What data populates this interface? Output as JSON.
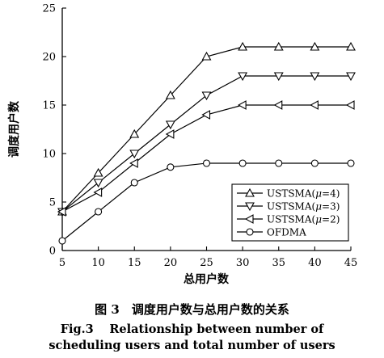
{
  "chart_data": {
    "type": "line",
    "xlabel": "总用户数",
    "ylabel": "调度用户数",
    "x": [
      5,
      10,
      15,
      20,
      25,
      30,
      35,
      40,
      45
    ],
    "xlim": [
      5,
      45
    ],
    "ylim": [
      0,
      25
    ],
    "xticks": [
      5,
      10,
      15,
      20,
      25,
      30,
      35,
      40,
      45
    ],
    "yticks": [
      0,
      5,
      10,
      15,
      20,
      25
    ],
    "grid": false,
    "legend_position": "bottom-right",
    "series": [
      {
        "name": "USTSMA(μ=4)",
        "name_prefix": "USTSMA(",
        "name_mu": "μ",
        "name_suffix": "=4)",
        "marker": "triangle-up",
        "values": [
          4,
          8,
          12,
          16,
          20,
          21,
          21,
          21,
          21
        ]
      },
      {
        "name": "USTSMA(μ=3)",
        "name_prefix": "USTSMA(",
        "name_mu": "μ",
        "name_suffix": "=3)",
        "marker": "triangle-down",
        "values": [
          4,
          7,
          10,
          13,
          16,
          18,
          18,
          18,
          18
        ]
      },
      {
        "name": "USTSMA(μ=2)",
        "name_prefix": "USTSMA(",
        "name_mu": "μ",
        "name_suffix": "=2)",
        "marker": "triangle-left",
        "values": [
          4,
          6,
          9,
          12,
          14,
          15,
          15,
          15,
          15
        ]
      },
      {
        "name": "OFDMA",
        "name_prefix": "OFDMA",
        "name_mu": "",
        "name_suffix": "",
        "marker": "circle",
        "values": [
          1,
          4,
          7,
          8.6,
          9,
          9,
          9,
          9,
          9
        ]
      }
    ]
  },
  "caption": {
    "cn": "图 3　调度用户数与总用户数的关系",
    "en_line1": "Fig.3　 Relationship between number of",
    "en_line2": "scheduling users and total number of users"
  }
}
